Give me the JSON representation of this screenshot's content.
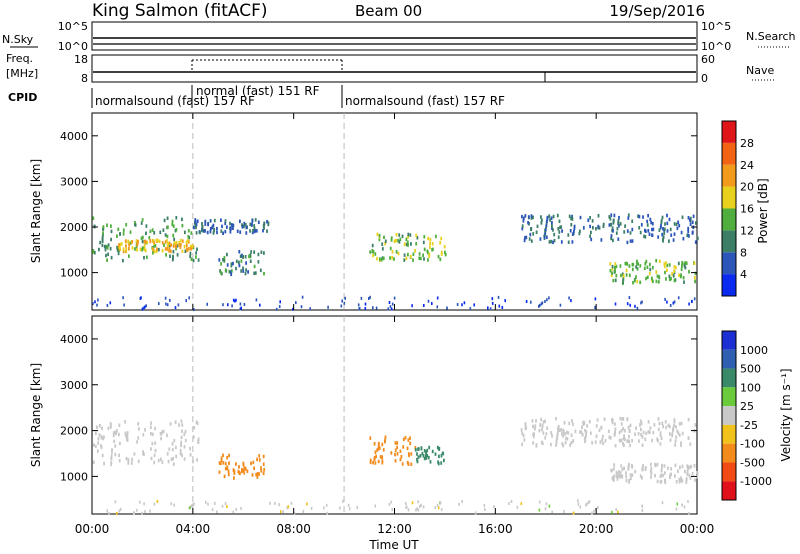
{
  "header": {
    "title": "King Salmon (fitACF)",
    "beam": "Beam 00",
    "date": "19/Sep/2016"
  },
  "top_panels": {
    "nsky_label": "N.Sky",
    "nsky_ticks": [
      "10^5",
      "10^0"
    ],
    "nsearch_label": "N.Search",
    "nsearch_ticks": [
      "10^5",
      "10^0"
    ],
    "freq_label_1": "Freq.",
    "freq_label_2": "[MHz]",
    "freq_ticks": [
      "18",
      "8"
    ],
    "nave_label": "Nave",
    "nave_ticks": [
      "60",
      "0"
    ],
    "cpid_label": "CPID",
    "cpid_segments": [
      {
        "label": "normalsound (fast) 157 RF",
        "start_hour": 0,
        "end_hour": 4
      },
      {
        "label": "normal (fast)  151  RF",
        "start_hour": 4,
        "end_hour": 10
      },
      {
        "label": "normalsound (fast) 157 RF",
        "start_hour": 10,
        "end_hour": 24
      }
    ]
  },
  "axes": {
    "x_ticks": [
      "00:00",
      "04:00",
      "08:00",
      "12:00",
      "16:00",
      "20:00",
      "00:00"
    ],
    "x_label": "Time UT",
    "y_ticks": [
      "1000",
      "2000",
      "3000",
      "4000"
    ],
    "y_label": "Slant Range [km]"
  },
  "power_colorbar": {
    "label": "Power [dB]",
    "ticks": [
      "4",
      "8",
      "12",
      "16",
      "20",
      "24",
      "28"
    ],
    "colors": [
      "#0a2af0",
      "#2b55b8",
      "#3c7f66",
      "#4fae3d",
      "#e8d11c",
      "#f29a1c",
      "#f26414",
      "#e0151a"
    ]
  },
  "velocity_colorbar": {
    "label": "Velocity [m s⁻¹]",
    "ticks": [
      "1000",
      "500",
      "100",
      "25",
      "-25",
      "-100",
      "-500",
      "-1000"
    ],
    "colors": [
      "#1b2fd2",
      "#2f5fb0",
      "#3a8a6a",
      "#6ccb3d",
      "#c8c8c8",
      "#f2c21c",
      "#f28a1c",
      "#f24a14",
      "#e0101a"
    ]
  },
  "chart_data": {
    "type": "heatmap",
    "x_range_hours": [
      0,
      24
    ],
    "y_range_km": [
      180,
      4500
    ],
    "panels": [
      {
        "name": "Power [dB]",
        "regions": [
          {
            "t0": 0.0,
            "t1": 4.2,
            "r0": 1300,
            "r1": 2250,
            "value": 12
          },
          {
            "t0": 1.0,
            "t1": 4.0,
            "r0": 1500,
            "r1": 1750,
            "value": 20
          },
          {
            "t0": 4.0,
            "t1": 7.0,
            "r0": 1900,
            "r1": 2200,
            "value": 8
          },
          {
            "t0": 5.0,
            "t1": 6.8,
            "r0": 1000,
            "r1": 1500,
            "value": 10
          },
          {
            "t0": 11.0,
            "t1": 14.0,
            "r0": 1300,
            "r1": 1900,
            "value": 14
          },
          {
            "t0": 17.0,
            "t1": 24.0,
            "r0": 1700,
            "r1": 2300,
            "value": 8
          },
          {
            "t0": 20.5,
            "t1": 24.0,
            "r0": 800,
            "r1": 1300,
            "value": 14
          }
        ]
      },
      {
        "name": "Velocity [m s⁻¹]",
        "regions": [
          {
            "t0": 0.0,
            "t1": 4.2,
            "r0": 1300,
            "r1": 2250,
            "value": 0
          },
          {
            "t0": 5.0,
            "t1": 6.8,
            "r0": 1000,
            "r1": 1500,
            "value": -300
          },
          {
            "t0": 11.0,
            "t1": 12.8,
            "r0": 1300,
            "r1": 1900,
            "value": -250
          },
          {
            "t0": 12.8,
            "t1": 14.0,
            "r0": 1300,
            "r1": 1700,
            "value": 150
          },
          {
            "t0": 17.0,
            "t1": 24.0,
            "r0": 1700,
            "r1": 2300,
            "value": 0
          },
          {
            "t0": 20.5,
            "t1": 24.0,
            "r0": 900,
            "r1": 1300,
            "value": 0
          }
        ]
      }
    ]
  }
}
